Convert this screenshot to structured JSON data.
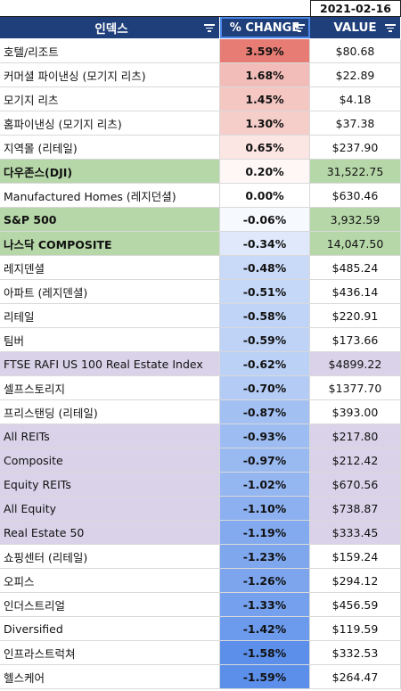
{
  "date": "2021-02-16",
  "headers": {
    "name": "인덱스",
    "change": "% CHANGE",
    "value": "VALUE"
  },
  "colors": {
    "header_bg": "#1f3f7a",
    "green_row": "#b6d7a8",
    "lavender_row": "#d9d2e9",
    "positive_high": "#e67c73",
    "negative_high": "#4a86e8"
  },
  "rows": [
    {
      "name": "호텔/리조트",
      "change": "3.59%",
      "value": "$80.68",
      "row_bg": "",
      "change_bg": "#e67c73",
      "bold": false
    },
    {
      "name": "커머셜 파이낸싱 (모기지 리츠)",
      "change": "1.68%",
      "value": "$22.89",
      "row_bg": "",
      "change_bg": "#f2bdb8",
      "bold": false
    },
    {
      "name": "모기지 리츠",
      "change": "1.45%",
      "value": "$4.18",
      "row_bg": "",
      "change_bg": "#f4c7c3",
      "bold": false
    },
    {
      "name": "홈파이낸싱 (모기지 리츠)",
      "change": "1.30%",
      "value": "$37.38",
      "row_bg": "",
      "change_bg": "#f5cdc9",
      "bold": false
    },
    {
      "name": "지역몰 (리테일)",
      "change": "0.65%",
      "value": "$237.90",
      "row_bg": "",
      "change_bg": "#fbe6e4",
      "bold": false
    },
    {
      "name": "다우존스(DJI)",
      "change": "0.20%",
      "value": "31,522.75",
      "row_bg": "#b6d7a8",
      "change_bg": "#fef7f6",
      "bold": true
    },
    {
      "name": "Manufactured Homes (레지던셜)",
      "change": "0.00%",
      "value": "$630.46",
      "row_bg": "",
      "change_bg": "#ffffff",
      "bold": false
    },
    {
      "name": "S&P 500",
      "change": "-0.06%",
      "value": "3,932.59",
      "row_bg": "#b6d7a8",
      "change_bg": "#f6f9fe",
      "bold": true
    },
    {
      "name": "나스닥 COMPOSITE",
      "change": "-0.34%",
      "value": "14,047.50",
      "row_bg": "#b6d7a8",
      "change_bg": "#dfe9fb",
      "bold": true
    },
    {
      "name": "레지덴셜",
      "change": "-0.48%",
      "value": "$485.24",
      "row_bg": "",
      "change_bg": "#c9daf8",
      "bold": false
    },
    {
      "name": "아파트 (레지덴셜)",
      "change": "-0.51%",
      "value": "$436.14",
      "row_bg": "",
      "change_bg": "#c6d8f7",
      "bold": false
    },
    {
      "name": "리테일",
      "change": "-0.58%",
      "value": "$220.91",
      "row_bg": "",
      "change_bg": "#c0d4f7",
      "bold": false
    },
    {
      "name": "팀버",
      "change": "-0.59%",
      "value": "$173.66",
      "row_bg": "",
      "change_bg": "#bfd3f7",
      "bold": false
    },
    {
      "name": "FTSE RAFI US 100 Real Estate Index",
      "change": "-0.62%",
      "value": "$4899.22",
      "row_bg": "#d9d2e9",
      "change_bg": "#bcd1f6",
      "bold": false
    },
    {
      "name": "셀프스토리지",
      "change": "-0.70%",
      "value": "$1377.70",
      "row_bg": "",
      "change_bg": "#b4ccf5",
      "bold": false
    },
    {
      "name": "프리스탠딩 (리테일)",
      "change": "-0.87%",
      "value": "$393.00",
      "row_bg": "",
      "change_bg": "#a3c0f3",
      "bold": false
    },
    {
      "name": "All REITs",
      "change": "-0.93%",
      "value": "$217.80",
      "row_bg": "#d9d2e9",
      "change_bg": "#9dbcf2",
      "bold": false
    },
    {
      "name": "Composite",
      "change": "-0.97%",
      "value": "$212.42",
      "row_bg": "#d9d2e9",
      "change_bg": "#99b9f1",
      "bold": false
    },
    {
      "name": "Equity REITs",
      "change": "-1.02%",
      "value": "$670.56",
      "row_bg": "#d9d2e9",
      "change_bg": "#94b6f1",
      "bold": false
    },
    {
      "name": "All Equity",
      "change": "-1.10%",
      "value": "$738.87",
      "row_bg": "#d9d2e9",
      "change_bg": "#8cb0f0",
      "bold": false
    },
    {
      "name": "Real Estate 50",
      "change": "-1.19%",
      "value": "$333.45",
      "row_bg": "#d9d2e9",
      "change_bg": "#83aaef",
      "bold": false
    },
    {
      "name": "쇼핑센터 (리테일)",
      "change": "-1.23%",
      "value": "$159.24",
      "row_bg": "",
      "change_bg": "#7fa7ee",
      "bold": false
    },
    {
      "name": "오피스",
      "change": "-1.26%",
      "value": "$294.12",
      "row_bg": "",
      "change_bg": "#7ca5ee",
      "bold": false
    },
    {
      "name": "인더스트리얼",
      "change": "-1.33%",
      "value": "$456.59",
      "row_bg": "",
      "change_bg": "#75a0ed",
      "bold": false
    },
    {
      "name": "Diversified",
      "change": "-1.42%",
      "value": "$119.59",
      "row_bg": "",
      "change_bg": "#6c9aec",
      "bold": false
    },
    {
      "name": "인프라스트럭쳐",
      "change": "-1.58%",
      "value": "$332.53",
      "row_bg": "",
      "change_bg": "#5c8fea",
      "bold": false
    },
    {
      "name": "헬스케어",
      "change": "-1.59%",
      "value": "$264.47",
      "row_bg": "",
      "change_bg": "#5b8fea",
      "bold": false
    }
  ]
}
